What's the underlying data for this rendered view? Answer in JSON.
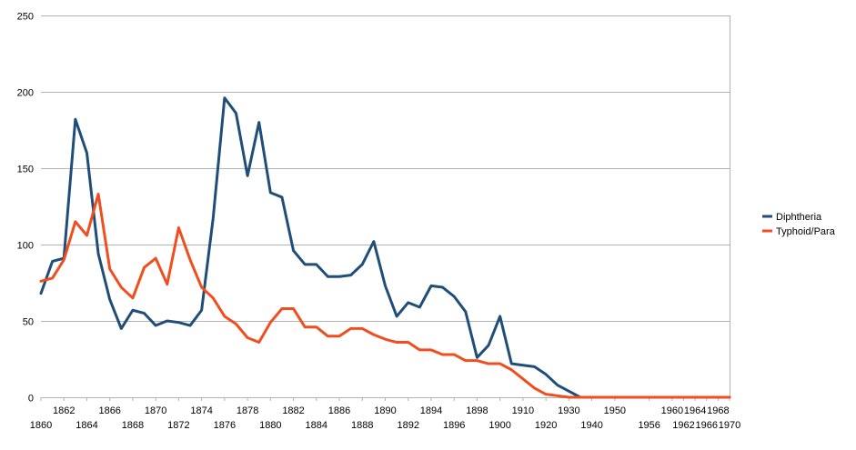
{
  "chart_data": {
    "type": "line",
    "title": "",
    "xlabel": "",
    "ylabel": "",
    "ylim": [
      0,
      250
    ],
    "yticks": [
      0,
      50,
      100,
      150,
      200,
      250
    ],
    "grid": "horizontal",
    "legend_position": "right",
    "categories": [
      "1860",
      "1861",
      "1862",
      "1863",
      "1864",
      "1865",
      "1866",
      "1867",
      "1868",
      "1869",
      "1870",
      "1871",
      "1872",
      "1873",
      "1874",
      "1875",
      "1876",
      "1877",
      "1878",
      "1879",
      "1880",
      "1881",
      "1882",
      "1883",
      "1884",
      "1885",
      "1886",
      "1887",
      "1888",
      "1889",
      "1890",
      "1891",
      "1892",
      "1893",
      "1894",
      "1895",
      "1896",
      "1897",
      "1898",
      "1899",
      "1900",
      "1905",
      "1910",
      "1915",
      "1920",
      "1925",
      "1930",
      "1935",
      "1940",
      "1945",
      "1950",
      "1952",
      "1954",
      "1956",
      "1958",
      "1960",
      "1962",
      "1964",
      "1966",
      "1968",
      "1970"
    ],
    "x_tick_labels": [
      "1860",
      "1862",
      "1864",
      "1866",
      "1868",
      "1870",
      "1872",
      "1874",
      "1876",
      "1878",
      "1880",
      "1882",
      "1884",
      "1886",
      "1888",
      "1890",
      "1892",
      "1894",
      "1896",
      "1898",
      "1900",
      "1910",
      "1920",
      "1930",
      "1940",
      "1950",
      "1956",
      "1960",
      "1962",
      "1964",
      "1966",
      "1968",
      "1970"
    ],
    "series": [
      {
        "name": "Diphtheria",
        "color": "#1f4e79",
        "values": [
          68,
          89,
          91,
          182,
          160,
          94,
          64,
          45,
          57,
          55,
          47,
          50,
          49,
          47,
          57,
          117,
          196,
          186,
          145,
          180,
          134,
          131,
          96,
          87,
          87,
          79,
          79,
          80,
          87,
          102,
          73,
          53,
          62,
          59,
          73,
          72,
          66,
          56,
          26,
          34,
          53,
          22,
          21,
          20,
          15,
          8,
          4,
          0,
          0,
          0,
          0,
          0,
          0,
          0,
          0,
          0,
          0,
          0,
          0,
          0,
          0
        ]
      },
      {
        "name": "Typhoid/Para",
        "color": "#f04e1e",
        "values": [
          76,
          78,
          90,
          115,
          106,
          133,
          84,
          72,
          65,
          85,
          91,
          74,
          111,
          90,
          72,
          65,
          53,
          48,
          39,
          36,
          49,
          58,
          58,
          46,
          46,
          40,
          40,
          45,
          45,
          41,
          38,
          36,
          36,
          31,
          31,
          28,
          28,
          24,
          24,
          22,
          22,
          18,
          12,
          6,
          2,
          1,
          0,
          0,
          0,
          0,
          0,
          0,
          0,
          0,
          0,
          0,
          0,
          0,
          0,
          0,
          0
        ]
      }
    ]
  }
}
